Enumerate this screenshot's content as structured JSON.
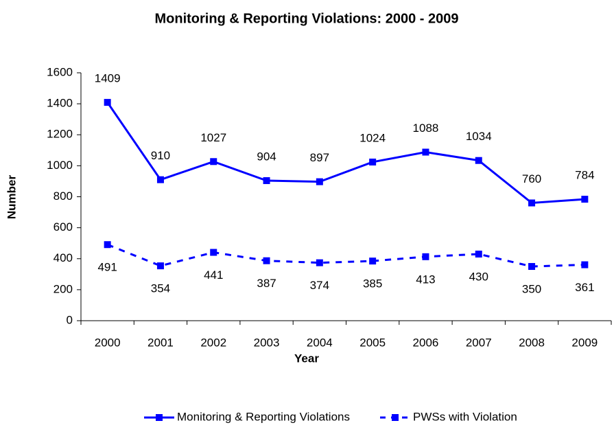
{
  "chart_data": {
    "type": "line",
    "title": "Monitoring & Reporting Violations: 2000 - 2009",
    "x_label": "Year",
    "y_label": "Number",
    "categories": [
      "2000",
      "2001",
      "2002",
      "2003",
      "2004",
      "2005",
      "2006",
      "2007",
      "2008",
      "2009"
    ],
    "series": [
      {
        "name": "Monitoring & Reporting Violations",
        "color": "#0000ff",
        "line_style": "solid",
        "label_position": "above",
        "values": [
          1409,
          910,
          1027,
          904,
          897,
          1024,
          1088,
          1034,
          760,
          784
        ]
      },
      {
        "name": "PWSs with Violation",
        "color": "#0000ff",
        "line_style": "dashed",
        "label_position": "below",
        "values": [
          491,
          354,
          441,
          387,
          374,
          385,
          413,
          430,
          350,
          361
        ]
      }
    ],
    "ylim": [
      0,
      1600
    ],
    "yticks": [
      0,
      200,
      400,
      600,
      800,
      1000,
      1200,
      1400,
      1600
    ],
    "grid": false,
    "legend": "bottom"
  }
}
